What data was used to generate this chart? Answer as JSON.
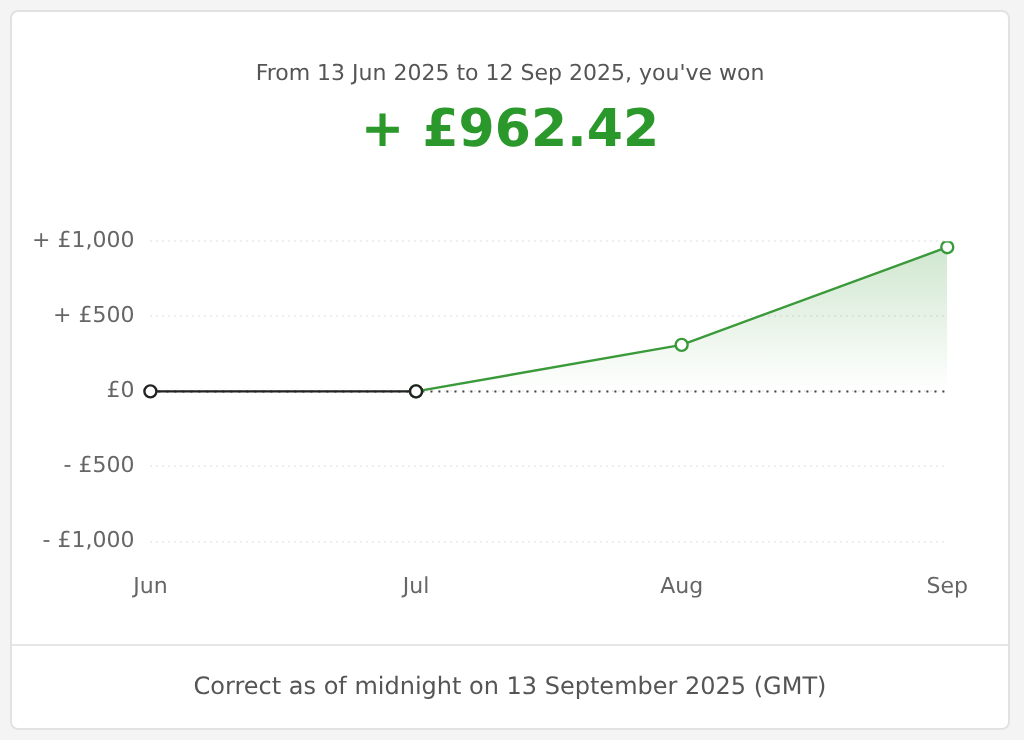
{
  "chart_data": {
    "type": "line",
    "title": "From 13 Jun 2025 to 12 Sep 2025, you've won",
    "subtitle": "+ £962.42",
    "categories": [
      "Jun",
      "Jul",
      "Aug",
      "Sep"
    ],
    "series": [
      {
        "color": "#222222",
        "values": [
          0,
          0,
          null,
          null
        ]
      },
      {
        "type": "area",
        "color": "#3a9a3a",
        "values": [
          null,
          0,
          310,
          960
        ]
      }
    ],
    "ylim": [
      -1000,
      1000
    ],
    "yticks": [
      {
        "value": -1000,
        "label": "- £1,000"
      },
      {
        "value": -500,
        "label": "- £500"
      },
      {
        "value": 0,
        "label": "£0"
      },
      {
        "value": 500,
        "label": "+ £500"
      },
      {
        "value": 1000,
        "label": "+ £1,000"
      }
    ],
    "grid": "y",
    "marker": "circle",
    "ref_lines": [
      {
        "axis": "y",
        "value": 0,
        "color": "#444444",
        "line_style": "dotted"
      }
    ],
    "annotations": [
      "Correct as of midnight on 13 September 2025 (GMT)"
    ]
  }
}
